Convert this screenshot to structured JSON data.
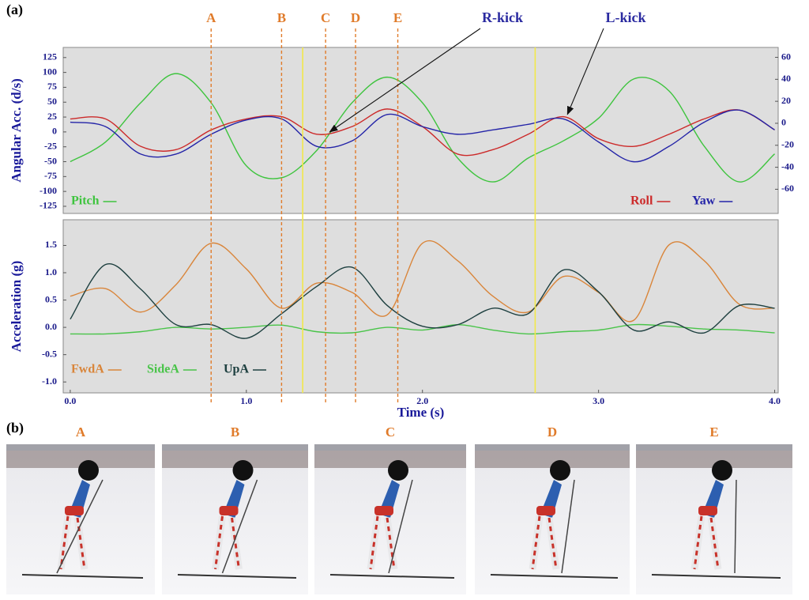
{
  "panel_labels": [
    "(a)",
    "(b)"
  ],
  "chart_data": [
    {
      "type": "line",
      "ylabel": "Angular Acc. (d/s)",
      "x": [
        0,
        0.2,
        0.4,
        0.6,
        0.8,
        1.0,
        1.2,
        1.4,
        1.6,
        1.8,
        2.0,
        2.2,
        2.4,
        2.6,
        2.8,
        3.0,
        3.2,
        3.4,
        3.6,
        3.8,
        4.0
      ],
      "xlim": [
        -0.04,
        4.02
      ],
      "ylim": [
        -137,
        142
      ],
      "yticks": [
        -125,
        -100,
        -75,
        -50,
        -25,
        0,
        25,
        50,
        75,
        100,
        125
      ],
      "y2lim": [
        -82,
        69
      ],
      "y2ticks": [
        -60,
        -40,
        -20,
        0,
        20,
        40,
        60
      ],
      "series": [
        {
          "name": "Pitch",
          "color": "#3ec43e",
          "values": [
            -50,
            -17,
            49,
            98,
            49,
            -57,
            -77,
            -31,
            49,
            92,
            49,
            -44,
            -84,
            -44,
            -15,
            23,
            89,
            69,
            -24,
            -84,
            -37
          ]
        },
        {
          "name": "Roll",
          "color": "#cc2a2a",
          "axis": "y2",
          "values": [
            4,
            4,
            -21,
            -24,
            -6,
            4,
            6,
            -10,
            -3,
            13,
            -3,
            -28,
            -24,
            -10,
            6,
            -14,
            -21,
            -10,
            4,
            12,
            -6
          ]
        },
        {
          "name": "Yaw",
          "color": "#2424a8",
          "axis": "y2",
          "values": [
            1,
            -3,
            -28,
            -28,
            -10,
            3,
            4,
            -21,
            -16,
            8,
            -3,
            -10,
            -6,
            -1,
            4,
            -17,
            -35,
            -21,
            1,
            12,
            -6
          ]
        }
      ],
      "markers": {
        "labels": [
          "A",
          "B",
          "C",
          "D",
          "E"
        ],
        "x": [
          0.8,
          1.2,
          1.45,
          1.62,
          1.86
        ],
        "color": "#e07b2a"
      },
      "highlight_x": [
        1.32,
        2.64
      ],
      "highlight_color": "#f2e84a",
      "annotations": [
        {
          "text": "R-kick",
          "x": 1.46,
          "y": -10,
          "axis": "y2"
        },
        {
          "text": "L-kick",
          "x": 2.81,
          "y": 6,
          "axis": "y2"
        }
      ]
    },
    {
      "type": "line",
      "ylabel": "Acceleration (g)",
      "xlabel": "Time (s)",
      "x": [
        0,
        0.2,
        0.4,
        0.6,
        0.8,
        1.0,
        1.2,
        1.4,
        1.6,
        1.8,
        2.0,
        2.2,
        2.4,
        2.6,
        2.8,
        3.0,
        3.2,
        3.4,
        3.6,
        3.8,
        4.0
      ],
      "xlim": [
        -0.04,
        4.02
      ],
      "xticks": [
        {
          "value": 0,
          "label": "0.0"
        },
        {
          "value": 1,
          "label": "1.0"
        },
        {
          "value": 2,
          "label": "2.0"
        },
        {
          "value": 3,
          "label": "3.0"
        },
        {
          "value": 4,
          "label": "4.0"
        }
      ],
      "ylim": [
        -1.2,
        1.97
      ],
      "yticks": [
        {
          "value": -1,
          "label": "-1.0"
        },
        -0.5,
        {
          "value": 0,
          "label": "0.0"
        },
        0.5,
        {
          "value": 1,
          "label": "1.0"
        },
        1.5
      ],
      "series": [
        {
          "name": "FwdA",
          "color": "#d9853a",
          "values": [
            0.57,
            0.71,
            0.28,
            0.78,
            1.54,
            1.07,
            0.35,
            0.81,
            0.64,
            0.23,
            1.54,
            1.22,
            0.57,
            0.28,
            0.93,
            0.64,
            0.13,
            1.51,
            1.22,
            0.42,
            0.35
          ]
        },
        {
          "name": "SideA",
          "color": "#49c449",
          "values": [
            -0.12,
            -0.12,
            -0.08,
            0.0,
            -0.03,
            0.0,
            0.04,
            -0.08,
            -0.1,
            0.0,
            -0.05,
            0.05,
            -0.05,
            -0.12,
            -0.08,
            -0.05,
            0.05,
            0.02,
            -0.03,
            -0.05,
            -0.1
          ]
        },
        {
          "name": "UpA",
          "color": "#1e4040",
          "values": [
            0.15,
            1.15,
            0.7,
            0.05,
            0.05,
            -0.2,
            0.25,
            0.75,
            1.1,
            0.4,
            0.02,
            0.05,
            0.35,
            0.25,
            1.05,
            0.65,
            -0.05,
            0.1,
            -0.1,
            0.4,
            0.35
          ]
        }
      ]
    }
  ],
  "photos": {
    "labels": [
      "A",
      "B",
      "C",
      "D",
      "E"
    ]
  }
}
